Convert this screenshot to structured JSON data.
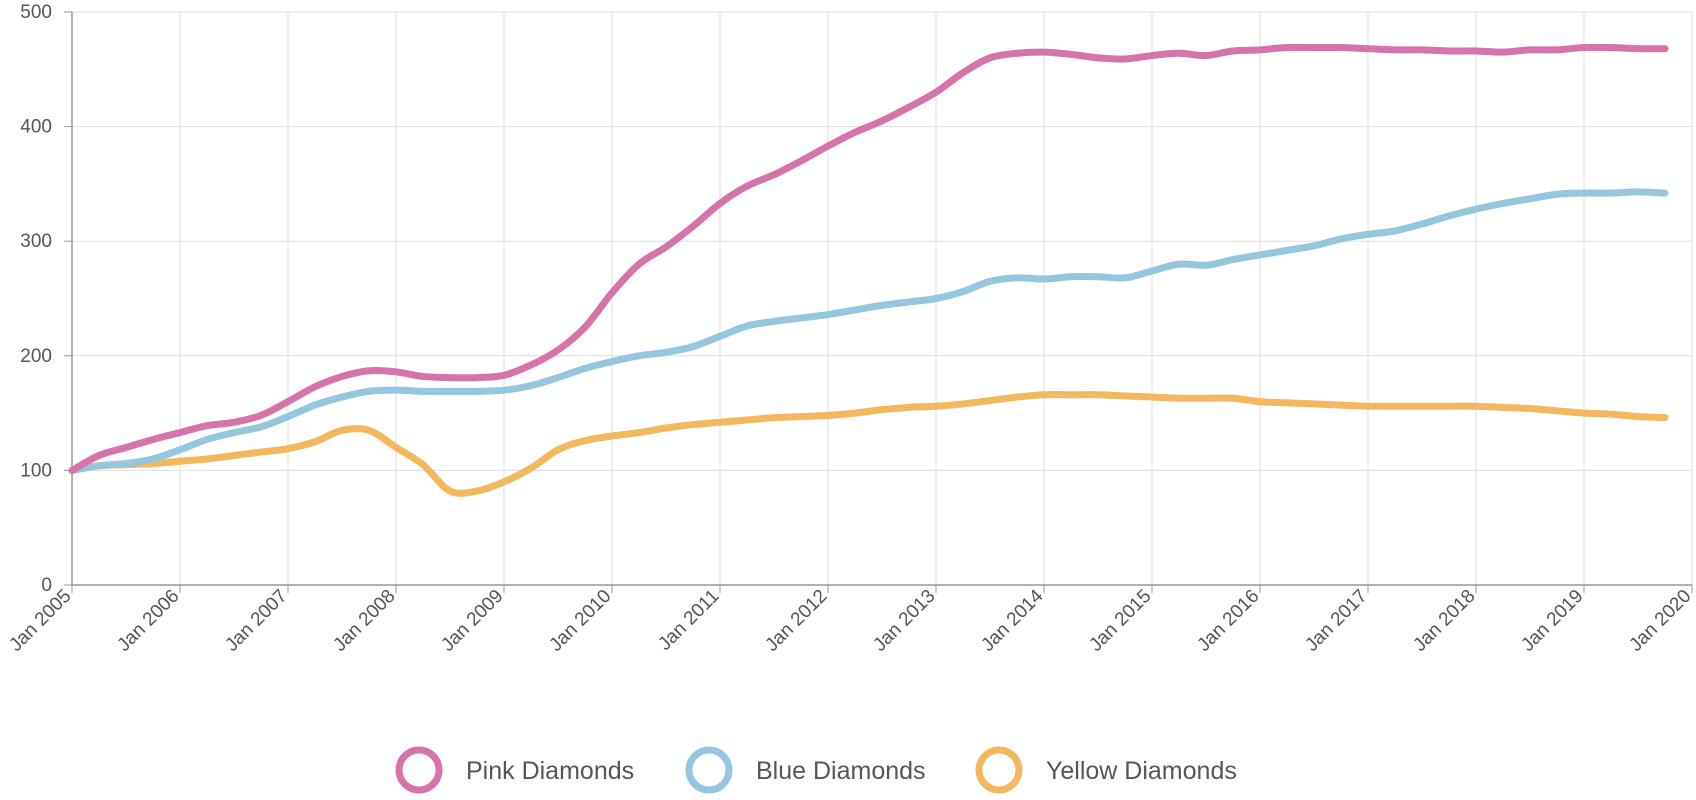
{
  "chart_data": {
    "type": "line",
    "title": "",
    "xlabel": "",
    "ylabel": "",
    "ylim": [
      0,
      500
    ],
    "yticks": [
      0,
      100,
      200,
      300,
      400,
      500
    ],
    "xlim": [
      2005,
      2020
    ],
    "xtick_labels": [
      "Jan 2005",
      "Jan 2006",
      "Jan 2007",
      "Jan 2008",
      "Jan 2009",
      "Jan 2010",
      "Jan 2011",
      "Jan 2012",
      "Jan 2013",
      "Jan 2014",
      "Jan 2015",
      "Jan 2016",
      "Jan 2017",
      "Jan 2018",
      "Jan 2019",
      "Jan 2020"
    ],
    "grid": true,
    "legend_position": "bottom",
    "series": [
      {
        "name": "Pink Diamonds",
        "color": "#d673ab",
        "x": [
          2005,
          2005.25,
          2005.5,
          2005.75,
          2006,
          2006.25,
          2006.5,
          2006.75,
          2007,
          2007.25,
          2007.5,
          2007.75,
          2008,
          2008.25,
          2008.5,
          2008.75,
          2009,
          2009.25,
          2009.5,
          2009.75,
          2010,
          2010.25,
          2010.5,
          2010.75,
          2011,
          2011.25,
          2011.5,
          2011.75,
          2012,
          2012.25,
          2012.5,
          2012.75,
          2013,
          2013.25,
          2013.5,
          2013.75,
          2014,
          2014.25,
          2014.5,
          2014.75,
          2015,
          2015.25,
          2015.5,
          2015.75,
          2016,
          2016.25,
          2016.5,
          2016.75,
          2017,
          2017.25,
          2017.5,
          2017.75,
          2018,
          2018.25,
          2018.5,
          2018.75,
          2019,
          2019.25,
          2019.5,
          2019.75
        ],
        "values": [
          100,
          113,
          120,
          127,
          133,
          139,
          142,
          148,
          160,
          173,
          182,
          187,
          186,
          182,
          181,
          181,
          183,
          192,
          205,
          225,
          255,
          280,
          295,
          313,
          333,
          348,
          358,
          370,
          383,
          395,
          405,
          417,
          430,
          447,
          460,
          464,
          465,
          463,
          460,
          459,
          462,
          464,
          462,
          466,
          467,
          469,
          469,
          469,
          468,
          467,
          467,
          466,
          466,
          465,
          467,
          467,
          469,
          469,
          468,
          468
        ]
      },
      {
        "name": "Blue Diamonds",
        "color": "#95c6df",
        "x": [
          2005,
          2005.25,
          2005.5,
          2005.75,
          2006,
          2006.25,
          2006.5,
          2006.75,
          2007,
          2007.25,
          2007.5,
          2007.75,
          2008,
          2008.25,
          2008.5,
          2008.75,
          2009,
          2009.25,
          2009.5,
          2009.75,
          2010,
          2010.25,
          2010.5,
          2010.75,
          2011,
          2011.25,
          2011.5,
          2011.75,
          2012,
          2012.25,
          2012.5,
          2012.75,
          2013,
          2013.25,
          2013.5,
          2013.75,
          2014,
          2014.25,
          2014.5,
          2014.75,
          2015,
          2015.25,
          2015.5,
          2015.75,
          2016,
          2016.25,
          2016.5,
          2016.75,
          2017,
          2017.25,
          2017.5,
          2017.75,
          2018,
          2018.25,
          2018.5,
          2018.75,
          2019,
          2019.25,
          2019.5,
          2019.75
        ],
        "values": [
          100,
          104,
          106,
          110,
          118,
          127,
          133,
          138,
          147,
          157,
          164,
          169,
          170,
          169,
          169,
          169,
          170,
          174,
          181,
          189,
          195,
          200,
          203,
          208,
          217,
          226,
          230,
          233,
          236,
          240,
          244,
          247,
          250,
          256,
          265,
          268,
          267,
          269,
          269,
          268,
          274,
          280,
          279,
          284,
          288,
          292,
          296,
          302,
          306,
          309,
          315,
          322,
          328,
          333,
          337,
          341,
          342,
          342,
          343,
          342
        ]
      },
      {
        "name": "Yellow Diamonds",
        "color": "#f3b75e",
        "x": [
          2005,
          2005.25,
          2005.5,
          2005.75,
          2006,
          2006.25,
          2006.5,
          2006.75,
          2007,
          2007.25,
          2007.5,
          2007.75,
          2008,
          2008.25,
          2008.5,
          2008.75,
          2009,
          2009.25,
          2009.5,
          2009.75,
          2010,
          2010.25,
          2010.5,
          2010.75,
          2011,
          2011.25,
          2011.5,
          2011.75,
          2012,
          2012.25,
          2012.5,
          2012.75,
          2013,
          2013.25,
          2013.5,
          2013.75,
          2014,
          2014.25,
          2014.5,
          2014.75,
          2015,
          2015.25,
          2015.5,
          2015.75,
          2016,
          2016.25,
          2016.5,
          2016.75,
          2017,
          2017.25,
          2017.5,
          2017.75,
          2018,
          2018.25,
          2018.5,
          2018.75,
          2019,
          2019.25,
          2019.5,
          2019.75
        ],
        "values": [
          100,
          104,
          105,
          106,
          108,
          110,
          113,
          116,
          119,
          125,
          135,
          135,
          120,
          105,
          82,
          82,
          90,
          102,
          118,
          126,
          130,
          133,
          137,
          140,
          142,
          144,
          146,
          147,
          148,
          150,
          153,
          155,
          156,
          158,
          161,
          164,
          166,
          166,
          166,
          165,
          164,
          163,
          163,
          163,
          160,
          159,
          158,
          157,
          156,
          156,
          156,
          156,
          156,
          155,
          154,
          152,
          150,
          149,
          147,
          146
        ]
      }
    ]
  }
}
